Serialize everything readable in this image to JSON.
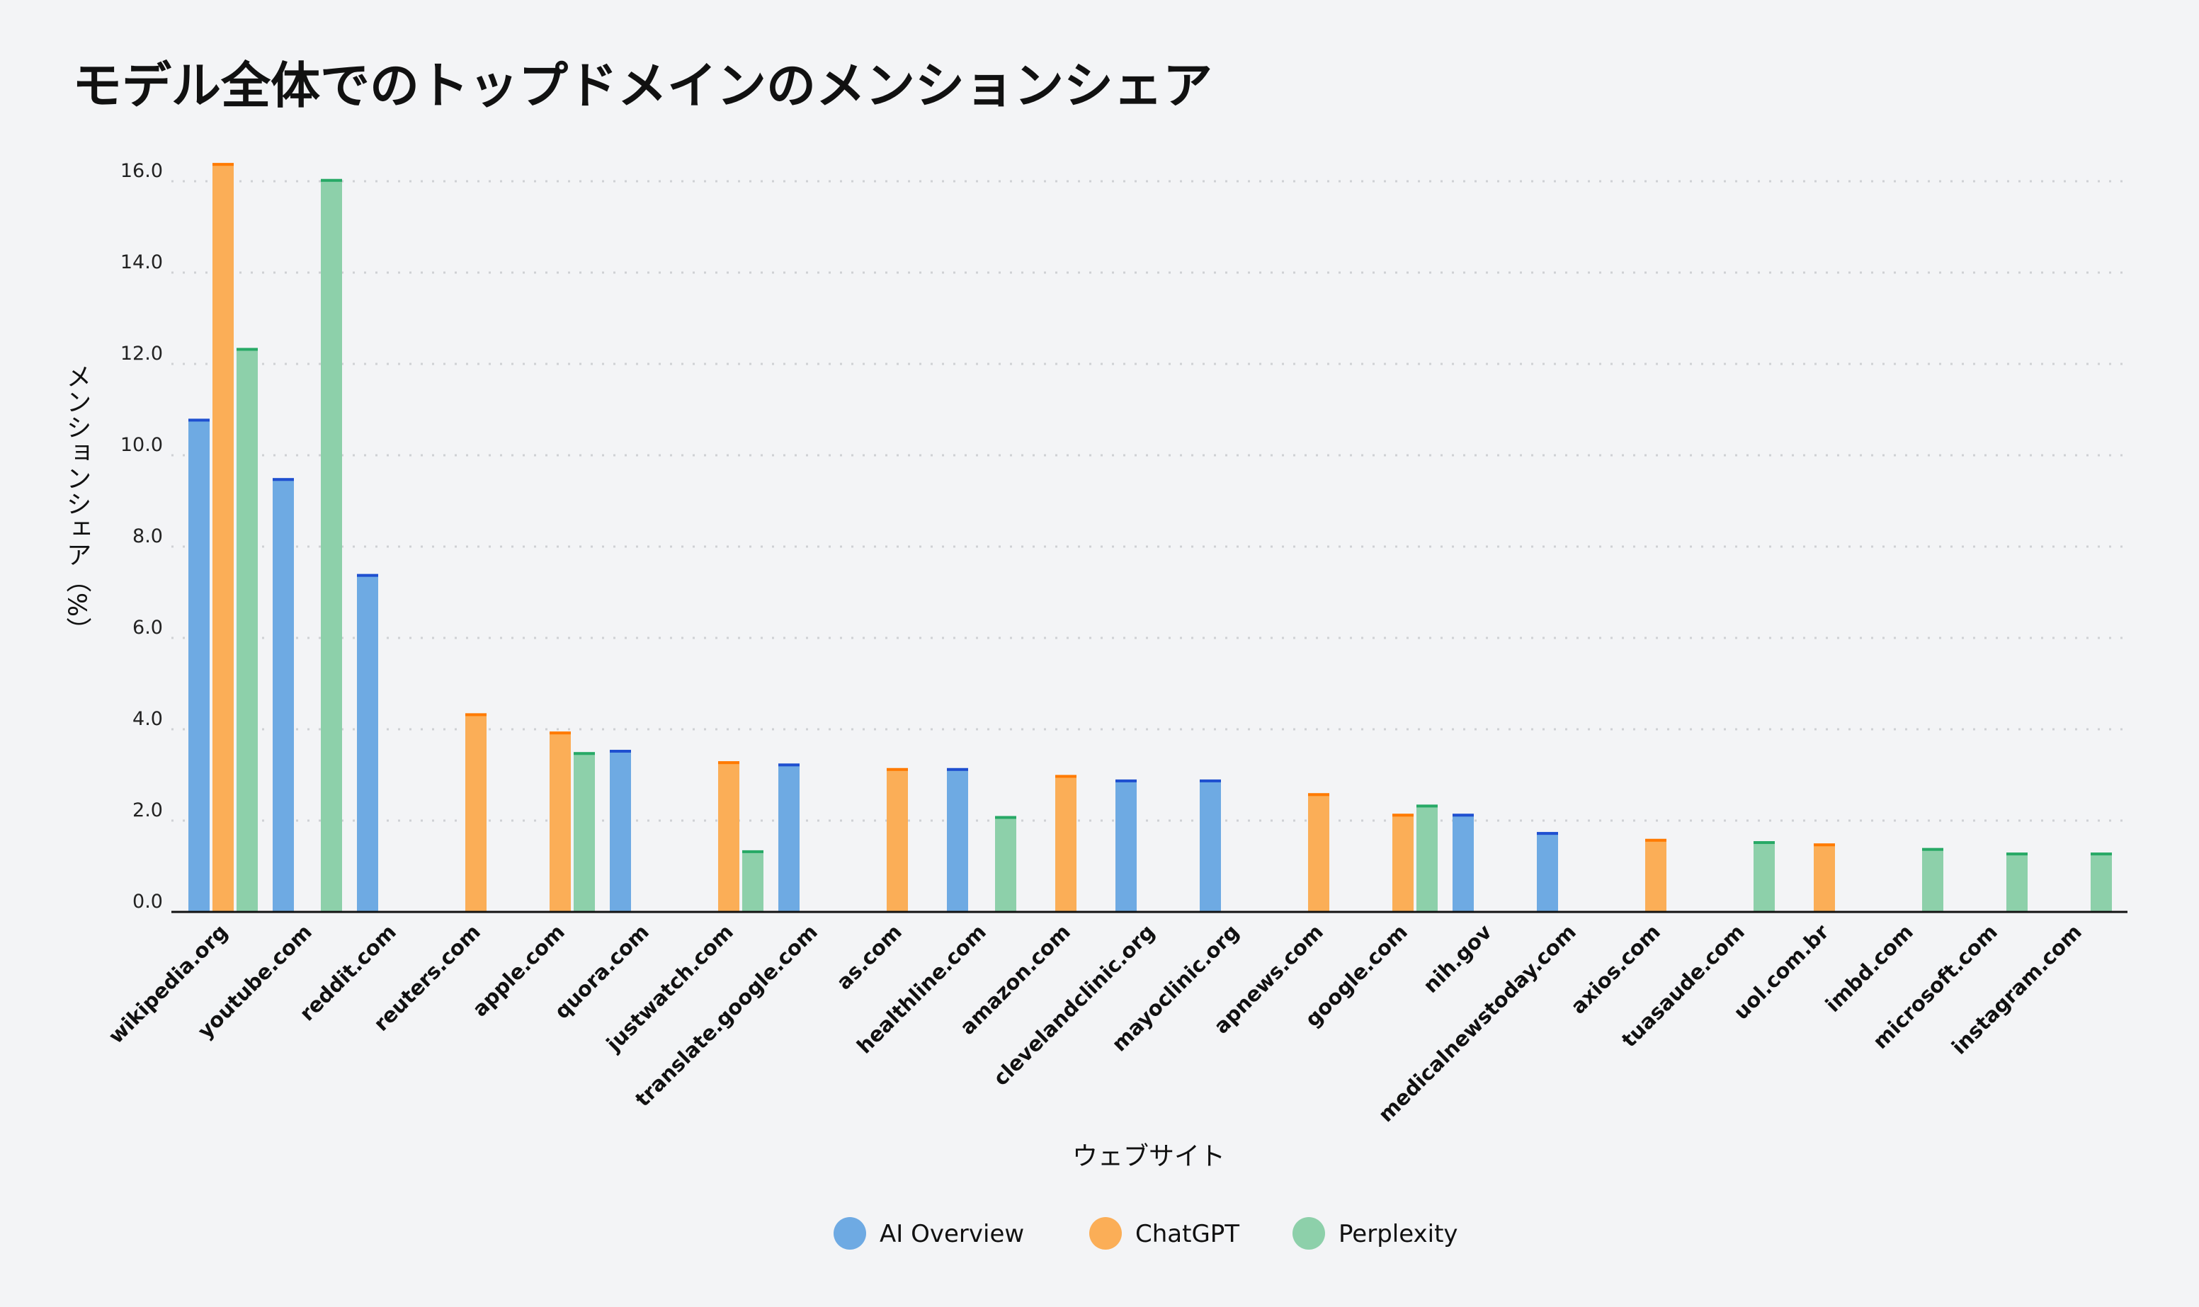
{
  "chart_data": {
    "type": "bar",
    "title": "モデル全体でのトップドメインのメンションシェア",
    "xlabel": "ウェブサイト",
    "ylabel": "メンションシェア（%）",
    "ylim": [
      0,
      16.4
    ],
    "yticks": [
      "0.0",
      "2.0",
      "4.0",
      "6.0",
      "8.0",
      "10.0",
      "12.0",
      "14.0",
      "16.0"
    ],
    "grid": true,
    "legend_position": "bottom-center",
    "categories": [
      "wikipedia.org",
      "youtube.com",
      "reddit.com",
      "reuters.com",
      "apple.com",
      "quora.com",
      "justwatch.com",
      "translate.google.com",
      "as.com",
      "healthline.com",
      "amazon.com",
      "clevelandclinic.org",
      "mayoclinic.org",
      "apnews.com",
      "google.com",
      "nih.gov",
      "medicalnewstoday.com",
      "axios.com",
      "tuasaude.com",
      "uol.com.br",
      "imbd.com",
      "microsoft.com",
      "instagram.com"
    ],
    "series": [
      {
        "name": "AI Overview",
        "color": "#6eaae3",
        "cap": "#1f4fd0",
        "values": [
          10.8,
          9.5,
          7.4,
          null,
          null,
          3.55,
          null,
          3.25,
          null,
          3.15,
          null,
          2.9,
          2.9,
          null,
          null,
          2.15,
          1.75,
          null,
          null,
          null,
          null,
          null,
          null
        ]
      },
      {
        "name": "ChatGPT",
        "color": "#fbae57",
        "cap": "#ff7a00",
        "values": [
          16.4,
          null,
          null,
          4.35,
          3.95,
          null,
          3.3,
          null,
          3.15,
          null,
          3.0,
          null,
          null,
          2.6,
          2.15,
          null,
          null,
          1.6,
          null,
          1.5,
          null,
          null,
          null
        ]
      },
      {
        "name": "Perplexity",
        "color": "#8dd0aa",
        "cap": "#27a966",
        "values": [
          12.35,
          16.05,
          null,
          null,
          3.5,
          null,
          1.35,
          null,
          null,
          2.1,
          null,
          null,
          null,
          null,
          2.35,
          null,
          null,
          null,
          1.55,
          null,
          1.4,
          1.3,
          1.3
        ]
      }
    ]
  }
}
